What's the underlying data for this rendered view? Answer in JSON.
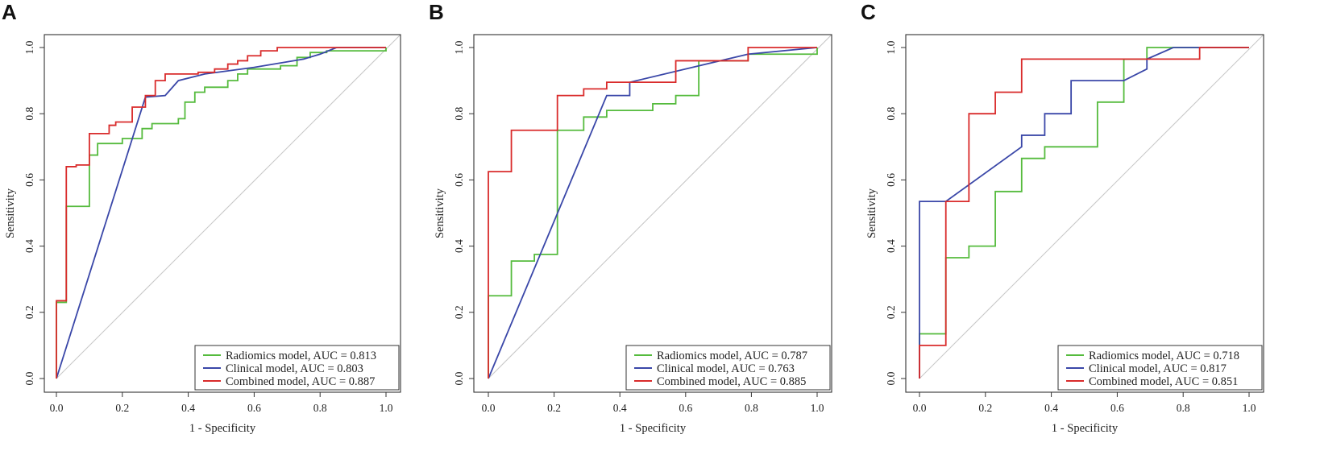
{
  "chart_data": [
    {
      "type": "line",
      "panel_label": "A",
      "xlabel": "1 - Specificity",
      "ylabel": "Sensitivity",
      "xlim": [
        0,
        1
      ],
      "ylim": [
        0,
        1
      ],
      "xticks": [
        "0.0",
        "0.2",
        "0.4",
        "0.6",
        "0.8",
        "1.0"
      ],
      "yticks": [
        "0.0",
        "0.2",
        "0.4",
        "0.6",
        "0.8",
        "1.0"
      ],
      "legend_position": "bottom-right",
      "series": [
        {
          "name": "Radiomics model",
          "legend": "Radiomics model, AUC = 0.813",
          "color": "#55bb3d",
          "points": [
            [
              0,
              0
            ],
            [
              0,
              0.23
            ],
            [
              0.03,
              0.23
            ],
            [
              0.03,
              0.52
            ],
            [
              0.1,
              0.52
            ],
            [
              0.1,
              0.675
            ],
            [
              0.125,
              0.675
            ],
            [
              0.125,
              0.71
            ],
            [
              0.2,
              0.71
            ],
            [
              0.2,
              0.725
            ],
            [
              0.26,
              0.725
            ],
            [
              0.26,
              0.755
            ],
            [
              0.29,
              0.755
            ],
            [
              0.29,
              0.77
            ],
            [
              0.37,
              0.77
            ],
            [
              0.37,
              0.785
            ],
            [
              0.39,
              0.785
            ],
            [
              0.39,
              0.835
            ],
            [
              0.42,
              0.835
            ],
            [
              0.42,
              0.865
            ],
            [
              0.45,
              0.865
            ],
            [
              0.45,
              0.88
            ],
            [
              0.52,
              0.88
            ],
            [
              0.52,
              0.9
            ],
            [
              0.55,
              0.9
            ],
            [
              0.55,
              0.92
            ],
            [
              0.58,
              0.92
            ],
            [
              0.58,
              0.935
            ],
            [
              0.68,
              0.935
            ],
            [
              0.68,
              0.945
            ],
            [
              0.73,
              0.945
            ],
            [
              0.73,
              0.97
            ],
            [
              0.77,
              0.97
            ],
            [
              0.77,
              0.985
            ],
            [
              0.82,
              0.985
            ],
            [
              0.82,
              0.99
            ],
            [
              1,
              0.99
            ],
            [
              1,
              1
            ]
          ]
        },
        {
          "name": "Clinical model",
          "legend": "Clinical model, AUC = 0.803",
          "color": "#3a47a8",
          "points": [
            [
              0,
              0
            ],
            [
              0.27,
              0.85
            ],
            [
              0.33,
              0.855
            ],
            [
              0.37,
              0.9
            ],
            [
              0.45,
              0.92
            ],
            [
              0.6,
              0.94
            ],
            [
              0.75,
              0.965
            ],
            [
              0.8,
              0.98
            ],
            [
              0.85,
              1.0
            ],
            [
              1,
              1
            ]
          ]
        },
        {
          "name": "Combined model",
          "legend": "Combined model, AUC = 0.887",
          "color": "#d92b2b",
          "points": [
            [
              0,
              0
            ],
            [
              0,
              0.235
            ],
            [
              0.03,
              0.235
            ],
            [
              0.03,
              0.64
            ],
            [
              0.06,
              0.64
            ],
            [
              0.06,
              0.645
            ],
            [
              0.1,
              0.645
            ],
            [
              0.1,
              0.74
            ],
            [
              0.16,
              0.74
            ],
            [
              0.16,
              0.765
            ],
            [
              0.18,
              0.765
            ],
            [
              0.18,
              0.775
            ],
            [
              0.23,
              0.775
            ],
            [
              0.23,
              0.82
            ],
            [
              0.27,
              0.82
            ],
            [
              0.27,
              0.855
            ],
            [
              0.3,
              0.855
            ],
            [
              0.3,
              0.9
            ],
            [
              0.33,
              0.9
            ],
            [
              0.33,
              0.92
            ],
            [
              0.43,
              0.92
            ],
            [
              0.43,
              0.925
            ],
            [
              0.48,
              0.925
            ],
            [
              0.48,
              0.935
            ],
            [
              0.52,
              0.935
            ],
            [
              0.52,
              0.95
            ],
            [
              0.55,
              0.95
            ],
            [
              0.55,
              0.96
            ],
            [
              0.58,
              0.96
            ],
            [
              0.58,
              0.975
            ],
            [
              0.62,
              0.975
            ],
            [
              0.62,
              0.99
            ],
            [
              0.67,
              0.99
            ],
            [
              0.67,
              1.0
            ],
            [
              1,
              1
            ]
          ]
        }
      ]
    },
    {
      "type": "line",
      "panel_label": "B",
      "xlabel": "1 - Specificity",
      "ylabel": "Sensitivity",
      "xlim": [
        0,
        1
      ],
      "ylim": [
        0,
        1
      ],
      "xticks": [
        "0.0",
        "0.2",
        "0.4",
        "0.6",
        "0.8",
        "1.0"
      ],
      "yticks": [
        "0.0",
        "0.2",
        "0.4",
        "0.6",
        "0.8",
        "1.0"
      ],
      "legend_position": "bottom-right",
      "series": [
        {
          "name": "Radiomics model",
          "legend": "Radiomics model, AUC = 0.787",
          "color": "#55bb3d",
          "points": [
            [
              0,
              0
            ],
            [
              0,
              0.25
            ],
            [
              0.07,
              0.25
            ],
            [
              0.07,
              0.355
            ],
            [
              0.14,
              0.355
            ],
            [
              0.14,
              0.375
            ],
            [
              0.21,
              0.375
            ],
            [
              0.21,
              0.75
            ],
            [
              0.29,
              0.75
            ],
            [
              0.29,
              0.79
            ],
            [
              0.36,
              0.79
            ],
            [
              0.36,
              0.81
            ],
            [
              0.5,
              0.81
            ],
            [
              0.5,
              0.83
            ],
            [
              0.57,
              0.83
            ],
            [
              0.57,
              0.855
            ],
            [
              0.64,
              0.855
            ],
            [
              0.64,
              0.96
            ],
            [
              0.79,
              0.96
            ],
            [
              0.79,
              0.98
            ],
            [
              1,
              0.98
            ],
            [
              1,
              1
            ]
          ]
        },
        {
          "name": "Clinical model",
          "legend": "Clinical model, AUC = 0.763",
          "color": "#3a47a8",
          "points": [
            [
              0,
              0
            ],
            [
              0.36,
              0.855
            ],
            [
              0.43,
              0.855
            ],
            [
              0.43,
              0.895
            ],
            [
              0.79,
              0.98
            ],
            [
              1,
              1
            ]
          ]
        },
        {
          "name": "Combined model",
          "legend": "Combined model, AUC = 0.885",
          "color": "#d92b2b",
          "points": [
            [
              0,
              0
            ],
            [
              0,
              0.625
            ],
            [
              0.07,
              0.625
            ],
            [
              0.07,
              0.75
            ],
            [
              0.21,
              0.75
            ],
            [
              0.21,
              0.855
            ],
            [
              0.29,
              0.855
            ],
            [
              0.29,
              0.875
            ],
            [
              0.36,
              0.875
            ],
            [
              0.36,
              0.895
            ],
            [
              0.57,
              0.895
            ],
            [
              0.57,
              0.96
            ],
            [
              0.79,
              0.96
            ],
            [
              0.79,
              1.0
            ],
            [
              1,
              1
            ]
          ]
        }
      ]
    },
    {
      "type": "line",
      "panel_label": "C",
      "xlabel": "1 - Specificity",
      "ylabel": "Sensitivity",
      "xlim": [
        0,
        1
      ],
      "ylim": [
        0,
        1
      ],
      "xticks": [
        "0.0",
        "0.2",
        "0.4",
        "0.6",
        "0.8",
        "1.0"
      ],
      "yticks": [
        "0.0",
        "0.2",
        "0.4",
        "0.6",
        "0.8",
        "1.0"
      ],
      "legend_position": "bottom-right",
      "series": [
        {
          "name": "Radiomics model",
          "legend": "Radiomics model, AUC = 0.718",
          "color": "#55bb3d",
          "points": [
            [
              0,
              0
            ],
            [
              0,
              0.135
            ],
            [
              0.08,
              0.135
            ],
            [
              0.08,
              0.365
            ],
            [
              0.15,
              0.365
            ],
            [
              0.15,
              0.4
            ],
            [
              0.23,
              0.4
            ],
            [
              0.23,
              0.565
            ],
            [
              0.31,
              0.565
            ],
            [
              0.31,
              0.665
            ],
            [
              0.38,
              0.665
            ],
            [
              0.38,
              0.7
            ],
            [
              0.54,
              0.7
            ],
            [
              0.54,
              0.835
            ],
            [
              0.62,
              0.835
            ],
            [
              0.62,
              0.965
            ],
            [
              0.69,
              0.965
            ],
            [
              0.69,
              1.0
            ],
            [
              1,
              1
            ]
          ]
        },
        {
          "name": "Clinical model",
          "legend": "Clinical model, AUC = 0.817",
          "color": "#3a47a8",
          "points": [
            [
              0,
              0
            ],
            [
              0,
              0.535
            ],
            [
              0.08,
              0.535
            ],
            [
              0.31,
              0.7
            ],
            [
              0.31,
              0.735
            ],
            [
              0.38,
              0.735
            ],
            [
              0.38,
              0.8
            ],
            [
              0.46,
              0.8
            ],
            [
              0.46,
              0.9
            ],
            [
              0.62,
              0.9
            ],
            [
              0.69,
              0.935
            ],
            [
              0.69,
              0.965
            ],
            [
              0.77,
              1.0
            ],
            [
              1,
              1
            ]
          ]
        },
        {
          "name": "Combined model",
          "legend": "Combined model, AUC = 0.851",
          "color": "#d92b2b",
          "points": [
            [
              0,
              0
            ],
            [
              0,
              0.1
            ],
            [
              0.08,
              0.1
            ],
            [
              0.08,
              0.535
            ],
            [
              0.15,
              0.535
            ],
            [
              0.15,
              0.8
            ],
            [
              0.23,
              0.8
            ],
            [
              0.23,
              0.865
            ],
            [
              0.31,
              0.865
            ],
            [
              0.31,
              0.965
            ],
            [
              0.85,
              0.965
            ],
            [
              0.85,
              1.0
            ],
            [
              1,
              1
            ]
          ]
        }
      ]
    }
  ]
}
